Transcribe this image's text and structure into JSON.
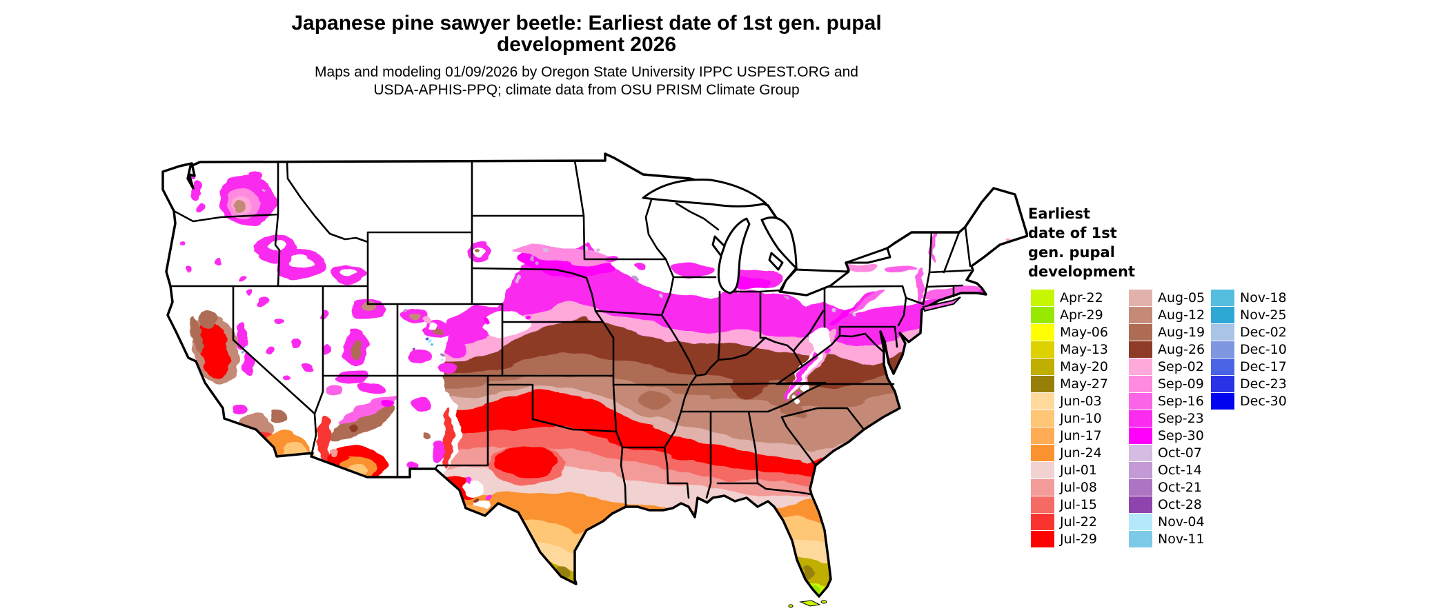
{
  "header": {
    "title_line1": "Japanese pine sawyer beetle: Earliest date of 1st gen. pupal",
    "title_line2": "development 2026",
    "subtitle_line1": "Maps and modeling 01/09/2026 by Oregon State University IPPC USPEST.ORG and",
    "subtitle_line2": "USDA-APHIS-PPQ; climate data from OSU PRISM Climate Group"
  },
  "legend": {
    "title_lines": [
      "Earliest",
      "date of 1st",
      "gen. pupal",
      "development"
    ],
    "columns": [
      [
        {
          "label": "Apr-22",
          "key": "apr22"
        },
        {
          "label": "Apr-29",
          "key": "apr29"
        },
        {
          "label": "May-06",
          "key": "may06"
        },
        {
          "label": "May-13",
          "key": "may13"
        },
        {
          "label": "May-20",
          "key": "may20"
        },
        {
          "label": "May-27",
          "key": "may27"
        },
        {
          "label": "Jun-03",
          "key": "jun03"
        },
        {
          "label": "Jun-10",
          "key": "jun10"
        },
        {
          "label": "Jun-17",
          "key": "jun17"
        },
        {
          "label": "Jun-24",
          "key": "jun24"
        },
        {
          "label": "Jul-01",
          "key": "jul01"
        },
        {
          "label": "Jul-08",
          "key": "jul08"
        },
        {
          "label": "Jul-15",
          "key": "jul15"
        },
        {
          "label": "Jul-22",
          "key": "jul22"
        },
        {
          "label": "Jul-29",
          "key": "jul29"
        }
      ],
      [
        {
          "label": "Aug-05",
          "key": "aug05"
        },
        {
          "label": "Aug-12",
          "key": "aug12"
        },
        {
          "label": "Aug-19",
          "key": "aug19"
        },
        {
          "label": "Aug-26",
          "key": "aug26"
        },
        {
          "label": "Sep-02",
          "key": "sep02"
        },
        {
          "label": "Sep-09",
          "key": "sep09"
        },
        {
          "label": "Sep-16",
          "key": "sep16"
        },
        {
          "label": "Sep-23",
          "key": "sep23"
        },
        {
          "label": "Sep-30",
          "key": "sep30"
        },
        {
          "label": "Oct-07",
          "key": "oct07"
        },
        {
          "label": "Oct-14",
          "key": "oct14"
        },
        {
          "label": "Oct-21",
          "key": "oct21"
        },
        {
          "label": "Oct-28",
          "key": "oct28"
        },
        {
          "label": "Nov-04",
          "key": "nov04"
        },
        {
          "label": "Nov-11",
          "key": "nov11"
        }
      ],
      [
        {
          "label": "Nov-18",
          "key": "nov18"
        },
        {
          "label": "Nov-25",
          "key": "nov25"
        },
        {
          "label": "Dec-02",
          "key": "dec02"
        },
        {
          "label": "Dec-10",
          "key": "dec10"
        },
        {
          "label": "Dec-17",
          "key": "dec17"
        },
        {
          "label": "Dec-23",
          "key": "dec23"
        },
        {
          "label": "Dec-30",
          "key": "dec30"
        }
      ]
    ]
  },
  "colors": {
    "apr22": "#C6F700",
    "apr29": "#97E800",
    "may06": "#FFFF00",
    "may13": "#DED100",
    "may20": "#C0AE00",
    "may27": "#97800A",
    "jun03": "#FFD99C",
    "jun10": "#FFC675",
    "jun17": "#FFAC55",
    "jun24": "#FB9230",
    "jul01": "#F2D2D0",
    "jul08": "#F29B98",
    "jul15": "#F56A65",
    "jul22": "#F93430",
    "jul29": "#FD0300",
    "aug05": "#E0B2AB",
    "aug12": "#C48A77",
    "aug19": "#AE6C55",
    "aug26": "#8E3B28",
    "sep02": "#FFA8DA",
    "sep09": "#FF8ADF",
    "sep16": "#FC64E8",
    "sep23": "#FB2BEF",
    "sep30": "#FF00FA",
    "oct07": "#D5BCE3",
    "oct14": "#C49AD6",
    "oct21": "#AC74C2",
    "oct28": "#8E44AC",
    "nov04": "#B5E8FA",
    "nov11": "#7CCAE8",
    "nov18": "#55BEE0",
    "nov25": "#2FA7D4",
    "dec02": "#A9C4E6",
    "dec10": "#7E97E0",
    "dec17": "#4A64E6",
    "dec23": "#2A33E8",
    "dec30": "#0004F0",
    "map_background": "#FFFFFF",
    "map_border": "#000000"
  }
}
